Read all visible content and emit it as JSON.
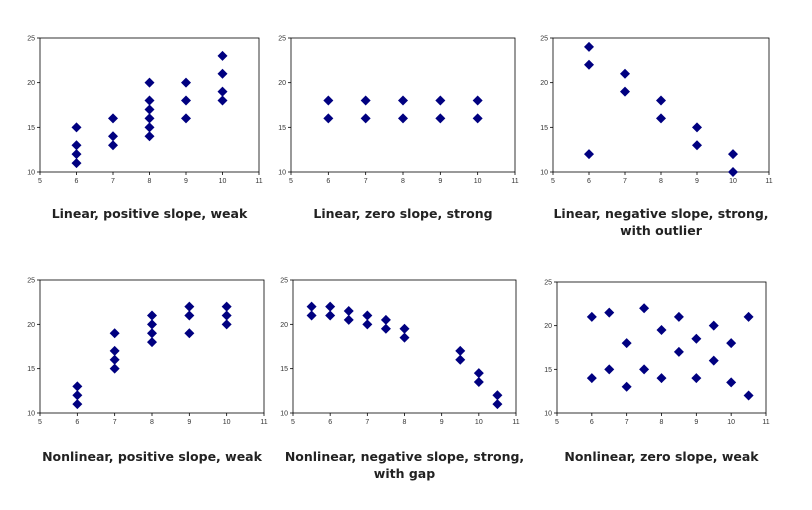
{
  "theme": {
    "marker_color": "#000080",
    "axis_color": "#000000"
  },
  "chart_data": [
    {
      "type": "scatter",
      "xlim": [
        5,
        11
      ],
      "ylim": [
        10,
        25
      ],
      "xticks": [
        "5",
        "6",
        "7",
        "8",
        "9",
        "10",
        "11"
      ],
      "yticks": [
        "10",
        "15",
        "20",
        "25"
      ],
      "caption_lines": [
        "Linear, positive slope, weak"
      ],
      "points": [
        [
          6,
          11
        ],
        [
          6,
          12
        ],
        [
          6,
          13
        ],
        [
          6,
          15
        ],
        [
          7,
          13
        ],
        [
          7,
          14
        ],
        [
          7,
          16
        ],
        [
          8,
          14
        ],
        [
          8,
          15
        ],
        [
          8,
          16
        ],
        [
          8,
          17
        ],
        [
          8,
          18
        ],
        [
          8,
          20
        ],
        [
          9,
          16
        ],
        [
          9,
          18
        ],
        [
          9,
          20
        ],
        [
          10,
          18
        ],
        [
          10,
          19
        ],
        [
          10,
          21
        ],
        [
          10,
          23
        ]
      ]
    },
    {
      "type": "scatter",
      "xlim": [
        5,
        11
      ],
      "ylim": [
        10,
        25
      ],
      "xticks": [
        "5",
        "6",
        "7",
        "8",
        "9",
        "10",
        "11"
      ],
      "yticks": [
        "10",
        "15",
        "20",
        "25"
      ],
      "caption_lines": [
        "Linear, zero slope, strong"
      ],
      "points": [
        [
          6,
          16
        ],
        [
          6,
          18
        ],
        [
          7,
          16
        ],
        [
          7,
          18
        ],
        [
          8,
          16
        ],
        [
          8,
          18
        ],
        [
          9,
          16
        ],
        [
          9,
          18
        ],
        [
          10,
          16
        ],
        [
          10,
          18
        ]
      ]
    },
    {
      "type": "scatter",
      "xlim": [
        5,
        11
      ],
      "ylim": [
        10,
        25
      ],
      "xticks": [
        "5",
        "6",
        "7",
        "8",
        "9",
        "10",
        "11"
      ],
      "yticks": [
        "10",
        "15",
        "20",
        "25"
      ],
      "caption_lines": [
        "Linear, negative slope, strong,",
        "with outlier"
      ],
      "points": [
        [
          6,
          24
        ],
        [
          6,
          22
        ],
        [
          6,
          12
        ],
        [
          7,
          21
        ],
        [
          7,
          19
        ],
        [
          8,
          18
        ],
        [
          8,
          16
        ],
        [
          9,
          15
        ],
        [
          9,
          13
        ],
        [
          10,
          12
        ],
        [
          10,
          10
        ]
      ]
    },
    {
      "type": "scatter",
      "xlim": [
        5,
        11
      ],
      "ylim": [
        10,
        25
      ],
      "xticks": [
        "5",
        "6",
        "7",
        "8",
        "9",
        "10",
        "11"
      ],
      "yticks": [
        "10",
        "15",
        "20",
        "25"
      ],
      "caption_lines": [
        "Nonlinear, positive slope, weak"
      ],
      "points": [
        [
          6,
          11
        ],
        [
          6,
          12
        ],
        [
          6,
          13
        ],
        [
          7,
          15
        ],
        [
          7,
          16
        ],
        [
          7,
          17
        ],
        [
          7,
          19
        ],
        [
          8,
          18
        ],
        [
          8,
          19
        ],
        [
          8,
          20
        ],
        [
          8,
          21
        ],
        [
          9,
          19
        ],
        [
          9,
          21
        ],
        [
          9,
          22
        ],
        [
          10,
          20
        ],
        [
          10,
          21
        ],
        [
          10,
          22
        ]
      ]
    },
    {
      "type": "scatter",
      "xlim": [
        5,
        11
      ],
      "ylim": [
        10,
        25
      ],
      "xticks": [
        "5",
        "6",
        "7",
        "8",
        "9",
        "10",
        "11"
      ],
      "yticks": [
        "10",
        "15",
        "20",
        "25"
      ],
      "caption_lines": [
        "Nonlinear, negative slope, strong,",
        "with gap"
      ],
      "points": [
        [
          5.5,
          22
        ],
        [
          5.5,
          21
        ],
        [
          6,
          22
        ],
        [
          6,
          21
        ],
        [
          6.5,
          21.5
        ],
        [
          6.5,
          20.5
        ],
        [
          7,
          21
        ],
        [
          7,
          20
        ],
        [
          7.5,
          20.5
        ],
        [
          7.5,
          19.5
        ],
        [
          8,
          19.5
        ],
        [
          8,
          18.5
        ],
        [
          9.5,
          17
        ],
        [
          9.5,
          16
        ],
        [
          10,
          14.5
        ],
        [
          10,
          13.5
        ],
        [
          10.5,
          12
        ],
        [
          10.5,
          11
        ]
      ]
    },
    {
      "type": "scatter",
      "xlim": [
        5,
        11
      ],
      "ylim": [
        10,
        25
      ],
      "xticks": [
        "5",
        "6",
        "7",
        "8",
        "9",
        "10",
        "11"
      ],
      "yticks": [
        "10",
        "15",
        "20",
        "25"
      ],
      "caption_lines": [
        "Nonlinear, zero slope, weak"
      ],
      "points": [
        [
          6,
          21
        ],
        [
          6,
          14
        ],
        [
          6.5,
          21.5
        ],
        [
          6.5,
          15
        ],
        [
          7,
          18
        ],
        [
          7,
          13
        ],
        [
          7.5,
          22
        ],
        [
          7.5,
          15
        ],
        [
          8,
          19.5
        ],
        [
          8,
          14
        ],
        [
          8.5,
          21
        ],
        [
          8.5,
          17
        ],
        [
          9,
          18.5
        ],
        [
          9,
          14
        ],
        [
          9.5,
          20
        ],
        [
          9.5,
          16
        ],
        [
          10,
          18
        ],
        [
          10,
          13.5
        ],
        [
          10.5,
          21
        ],
        [
          10.5,
          12
        ]
      ]
    }
  ]
}
